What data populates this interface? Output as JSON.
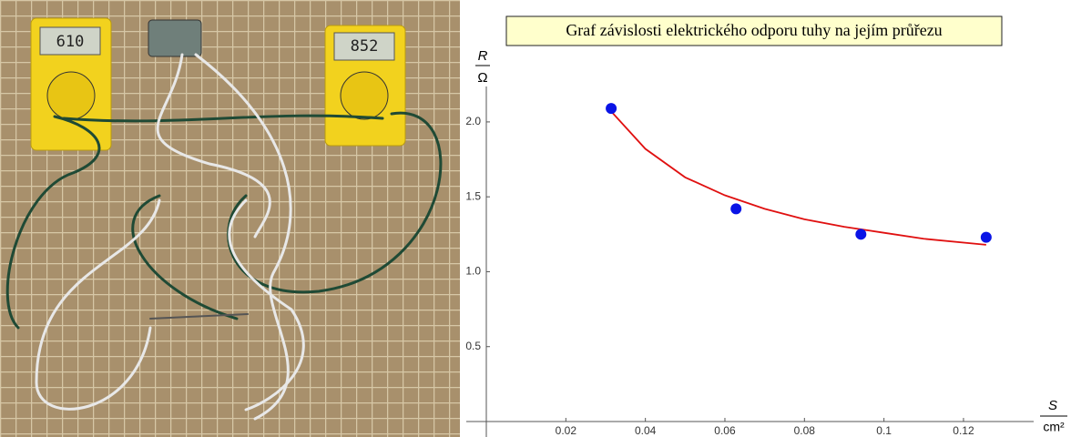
{
  "photo": {
    "meter_readings": [
      "610",
      "852"
    ]
  },
  "chart_data": {
    "type": "scatter",
    "title": "Graf závislosti elektrického odporu tuhy na jejím průřezu",
    "x_label": {
      "numerator": "S",
      "denominator": "cm²"
    },
    "y_label": {
      "numerator": "R",
      "denominator": "Ω"
    },
    "x": [
      0.0314,
      0.0628,
      0.0942,
      0.1257
    ],
    "series": [
      {
        "values": [
          2.09,
          1.42,
          1.25,
          1.23
        ],
        "color": "#0a14e6"
      }
    ],
    "fit": {
      "x": [
        0.0314,
        0.04,
        0.05,
        0.06,
        0.07,
        0.08,
        0.09,
        0.1,
        0.11,
        0.1257
      ],
      "values": [
        2.07,
        1.82,
        1.63,
        1.51,
        1.42,
        1.35,
        1.3,
        1.26,
        1.22,
        1.18
      ],
      "color": "#e01010"
    },
    "xlim": [
      0,
      0.1365
    ],
    "ylim": [
      0,
      2.2
    ],
    "xticks": [
      0.02,
      0.04,
      0.06,
      0.08,
      0.1,
      0.12
    ],
    "yticks": [
      0.5,
      {
        "value": 1,
        "label": "1.0"
      },
      1.5,
      {
        "value": 2,
        "label": "2.0"
      }
    ]
  }
}
